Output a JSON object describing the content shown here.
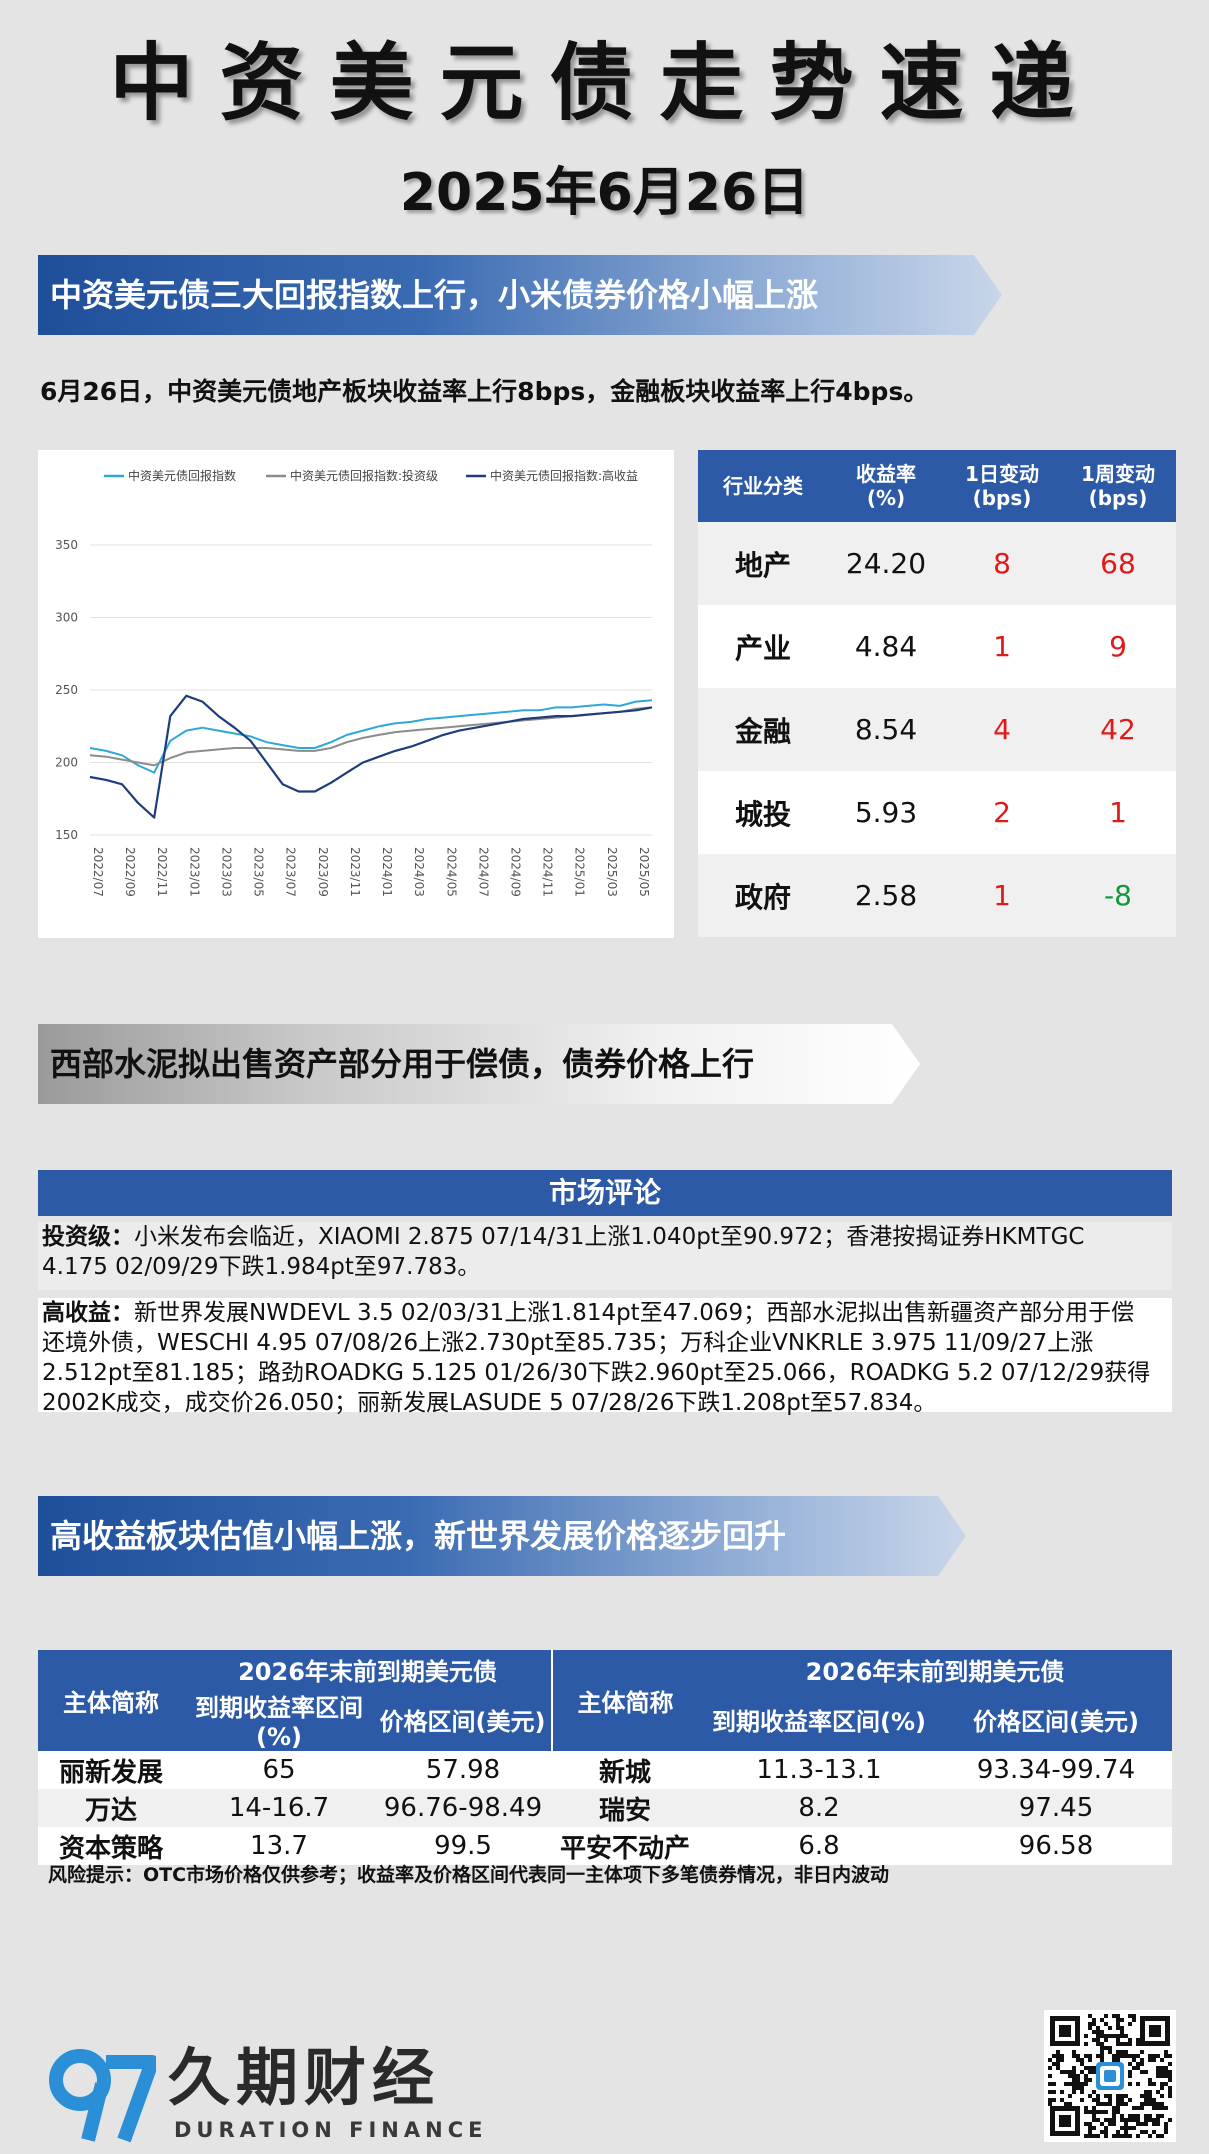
{
  "header": {
    "title": "中资美元债走势速递",
    "date": "2025年6月26日"
  },
  "section1": {
    "banner": "中资美元债三大回报指数上行，小米债券价格小幅上涨",
    "summary": "6月26日，中资美元债地产板块收益率上行8bps，金融板块收益率上行4bps。"
  },
  "chart_data": {
    "type": "line",
    "legend_position": "top",
    "grid": true,
    "ylim": [
      150,
      350
    ],
    "yticks": [
      150,
      200,
      250,
      300,
      350
    ],
    "x_ticks": [
      "2022/07",
      "2022/09",
      "2022/11",
      "2023/01",
      "2023/03",
      "2023/05",
      "2023/07",
      "2023/09",
      "2023/11",
      "2024/01",
      "2024/03",
      "2024/05",
      "2024/07",
      "2024/09",
      "2024/11",
      "2025/01",
      "2025/03",
      "2025/05"
    ],
    "x": [
      "2022/07",
      "2022/08",
      "2022/09",
      "2022/10",
      "2022/11",
      "2022/12",
      "2023/01",
      "2023/02",
      "2023/03",
      "2023/04",
      "2023/05",
      "2023/06",
      "2023/07",
      "2023/08",
      "2023/09",
      "2023/10",
      "2023/11",
      "2023/12",
      "2024/01",
      "2024/02",
      "2024/03",
      "2024/04",
      "2024/05",
      "2024/06",
      "2024/07",
      "2024/08",
      "2024/09",
      "2024/10",
      "2024/11",
      "2024/12",
      "2025/01",
      "2025/02",
      "2025/03",
      "2025/04",
      "2025/05",
      "2025/06"
    ],
    "series": [
      {
        "name": "中资美元债回报指数",
        "color": "#2ea8d8",
        "values": [
          210,
          208,
          205,
          198,
          193,
          215,
          222,
          224,
          222,
          220,
          218,
          214,
          212,
          210,
          210,
          214,
          219,
          222,
          225,
          227,
          228,
          230,
          231,
          232,
          233,
          234,
          235,
          236,
          236,
          238,
          238,
          239,
          240,
          239,
          242,
          243
        ]
      },
      {
        "name": "中资美元债回报指数:投资级",
        "color": "#8c8c8c",
        "values": [
          205,
          204,
          202,
          200,
          198,
          203,
          207,
          208,
          209,
          210,
          210,
          210,
          209,
          208,
          208,
          210,
          214,
          217,
          219,
          221,
          222,
          223,
          224,
          225,
          226,
          227,
          228,
          229,
          230,
          231,
          232,
          233,
          234,
          235,
          237,
          238
        ]
      },
      {
        "name": "中资美元债回报指数:高收益",
        "color": "#1f3d7a",
        "values": [
          190,
          188,
          185,
          172,
          162,
          232,
          246,
          242,
          232,
          224,
          215,
          200,
          185,
          180,
          180,
          186,
          193,
          200,
          204,
          208,
          211,
          215,
          219,
          222,
          224,
          226,
          228,
          230,
          231,
          232,
          232,
          233,
          234,
          235,
          236,
          238
        ]
      }
    ]
  },
  "industry_table": {
    "headers": [
      "行业分类",
      "收益率(%)",
      "1日变动(bps)",
      "1周变动(bps)"
    ],
    "header_lines": [
      [
        "行业分类"
      ],
      [
        "收益率",
        "(%)"
      ],
      [
        "1日变动",
        "(bps)"
      ],
      [
        "1周变动",
        "(bps)"
      ]
    ],
    "rows": [
      {
        "sector": "地产",
        "yield": "24.20",
        "d1": "8",
        "w1": "68",
        "d1_color": "#e01a1a",
        "w1_color": "#e01a1a"
      },
      {
        "sector": "产业",
        "yield": "4.84",
        "d1": "1",
        "w1": "9",
        "d1_color": "#e01a1a",
        "w1_color": "#e01a1a"
      },
      {
        "sector": "金融",
        "yield": "8.54",
        "d1": "4",
        "w1": "42",
        "d1_color": "#e01a1a",
        "w1_color": "#e01a1a"
      },
      {
        "sector": "城投",
        "yield": "5.93",
        "d1": "2",
        "w1": "1",
        "d1_color": "#e01a1a",
        "w1_color": "#e01a1a"
      },
      {
        "sector": "政府",
        "yield": "2.58",
        "d1": "1",
        "w1": "-8",
        "d1_color": "#e01a1a",
        "w1_color": "#0f9a3e"
      }
    ]
  },
  "section2": {
    "banner": "西部水泥拟出售资产部分用于偿债，债券价格上行"
  },
  "market_comment": {
    "title": "市场评论",
    "ig_label": "投资级：",
    "ig_text": "小米发布会临近，XIAOMI 2.875 07/14/31上涨1.040pt至90.972；香港按揭证券HKMTGC\n4.175 02/09/29下跌1.984pt至97.783。",
    "hy_label": "高收益：",
    "hy_text": "新世界发展NWDEVL 3.5 02/03/31上涨1.814pt至47.069；西部水泥拟出售新疆资产部分用于偿\n还境外债，WESCHI 4.95 07/08/26上涨2.730pt至85.735；万科企业VNKRLE 3.975 11/09/27上涨\n2.512pt至81.185；路劲ROADKG 5.125 01/26/30下跌2.960pt至25.066，ROADKG 5.2 07/12/29获得\n2002K成交，成交价26.050；丽新发展LASUDE 5 07/28/26下跌1.208pt至57.834。"
  },
  "section3": {
    "banner": "高收益板块估值小幅上涨，新世界发展价格逐步回升"
  },
  "bond_table": {
    "entity_header": "主体简称",
    "group_header": "2026年末前到期美元债",
    "sub_headers": [
      "到期收益率区间(%)",
      "价格区间(美元)"
    ],
    "left_rows": [
      {
        "name": "丽新发展",
        "ytm": "65",
        "price": "57.98"
      },
      {
        "name": "万达",
        "ytm": "14-16.7",
        "price": "96.76-98.49"
      },
      {
        "name": "资本策略",
        "ytm": "13.7",
        "price": "99.5"
      }
    ],
    "right_rows": [
      {
        "name": "新城",
        "ytm": "11.3-13.1",
        "price": "93.34-99.74"
      },
      {
        "name": "瑞安",
        "ytm": "8.2",
        "price": "97.45"
      },
      {
        "name": "平安不动产",
        "ytm": "6.8",
        "price": "96.58"
      }
    ]
  },
  "risk_note": "风险提示：OTC市场价格仅供参考；收益率及价格区间代表同一主体项下多笔债券情况，非日内波动",
  "footer": {
    "logo_cn": "久期财经",
    "logo_en": "DURATION FINANCE",
    "accent": "#2a8fd6"
  }
}
